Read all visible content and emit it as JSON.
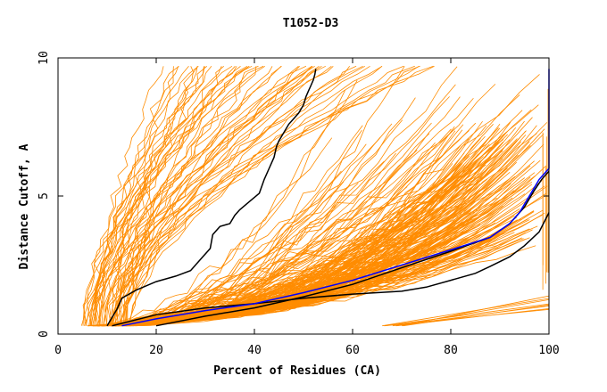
{
  "chart_data": {
    "type": "line",
    "title": "T1052-D3",
    "xlabel": "Percent of Residues (CA)",
    "ylabel": "Distance Cutoff, A",
    "xlim": [
      0,
      100
    ],
    "ylim": [
      0,
      10
    ],
    "xticks": [
      {
        "value": 0,
        "label": "0"
      },
      {
        "value": 20,
        "label": "20"
      },
      {
        "value": 40,
        "label": "40"
      },
      {
        "value": 60,
        "label": "60"
      },
      {
        "value": 80,
        "label": "80"
      },
      {
        "value": 100,
        "label": "100"
      }
    ],
    "yticks": [
      {
        "value": 0,
        "label": "0"
      },
      {
        "value": 5,
        "label": "5"
      },
      {
        "value": 10,
        "label": "10"
      }
    ],
    "grid": false,
    "legend": "none",
    "colors": {
      "background_series": "#ff8c00",
      "reference": "#0000ff",
      "highlight": "#000000"
    },
    "background_series_description": "many orange model curves spanning the plot",
    "series": [
      {
        "color": "#000000",
        "x": [
          10,
          11,
          12,
          13,
          16,
          20,
          24,
          27,
          29,
          31,
          31.5,
          33,
          35,
          36,
          37,
          39,
          41,
          42,
          43,
          44,
          44.5,
          45,
          46,
          47,
          48,
          49,
          50,
          50.5,
          51,
          51.5,
          52,
          52.3,
          52.5
        ],
        "y": [
          0.3,
          0.6,
          0.9,
          1.3,
          1.6,
          1.9,
          2.1,
          2.3,
          2.7,
          3.1,
          3.6,
          3.9,
          4.0,
          4.3,
          4.5,
          4.8,
          5.1,
          5.6,
          6.0,
          6.4,
          6.8,
          7.0,
          7.3,
          7.6,
          7.8,
          8.0,
          8.3,
          8.6,
          8.8,
          9.0,
          9.2,
          9.4,
          9.6
        ]
      },
      {
        "color": "#000000",
        "x": [
          11,
          20,
          30,
          40,
          50,
          60,
          70,
          75,
          80,
          85,
          88,
          92,
          95,
          98,
          100
        ],
        "y": [
          0.3,
          0.7,
          0.95,
          1.1,
          1.3,
          1.45,
          1.55,
          1.7,
          1.95,
          2.2,
          2.45,
          2.8,
          3.2,
          3.7,
          4.4
        ]
      },
      {
        "color": "#000000",
        "x": [
          20,
          30,
          40,
          50,
          60,
          70,
          80,
          88,
          92,
          95,
          97,
          98.5,
          100
        ],
        "y": [
          0.3,
          0.65,
          0.95,
          1.35,
          1.8,
          2.4,
          3.0,
          3.5,
          4.0,
          4.6,
          5.2,
          5.6,
          5.9
        ]
      },
      {
        "color": "#0000ff",
        "x": [
          13,
          20,
          30,
          40,
          50,
          60,
          70,
          80,
          88,
          90,
          92,
          94,
          95,
          96,
          97,
          98,
          99,
          100,
          100,
          100
        ],
        "y": [
          0.3,
          0.55,
          0.85,
          1.1,
          1.5,
          1.95,
          2.5,
          3.05,
          3.5,
          3.75,
          4.0,
          4.4,
          4.7,
          5.0,
          5.3,
          5.6,
          5.8,
          6.0,
          8.0,
          9.6
        ]
      }
    ]
  }
}
